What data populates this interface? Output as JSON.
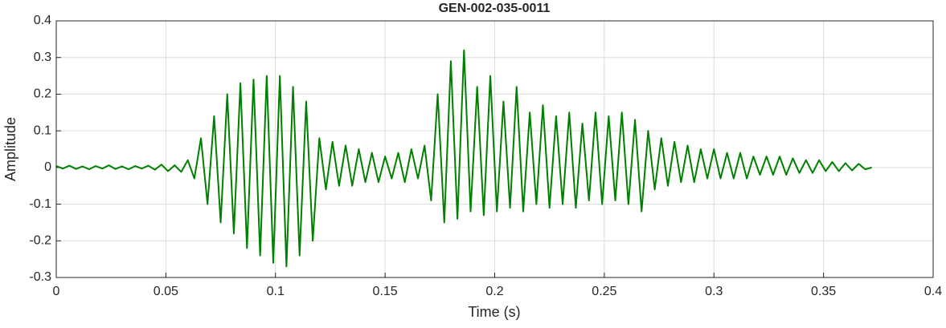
{
  "chart_data": {
    "type": "line",
    "title": "GEN-002-035-0011",
    "x_label": "Time (s)",
    "y_label": "Amplitude",
    "x": [
      0,
      0.003,
      0.006,
      0.009,
      0.012,
      0.015,
      0.018,
      0.021,
      0.024,
      0.027,
      0.03,
      0.033,
      0.036,
      0.039,
      0.042,
      0.045,
      0.048,
      0.051,
      0.054,
      0.057,
      0.06,
      0.063,
      0.066,
      0.069,
      0.072,
      0.075,
      0.078,
      0.081,
      0.084,
      0.087,
      0.09,
      0.093,
      0.096,
      0.099,
      0.102,
      0.105,
      0.108,
      0.111,
      0.114,
      0.117,
      0.12,
      0.123,
      0.126,
      0.129,
      0.132,
      0.135,
      0.138,
      0.141,
      0.144,
      0.147,
      0.15,
      0.153,
      0.156,
      0.159,
      0.162,
      0.165,
      0.168,
      0.171,
      0.174,
      0.177,
      0.18,
      0.183,
      0.186,
      0.189,
      0.192,
      0.195,
      0.198,
      0.201,
      0.204,
      0.207,
      0.21,
      0.213,
      0.216,
      0.219,
      0.222,
      0.225,
      0.228,
      0.231,
      0.234,
      0.237,
      0.24,
      0.243,
      0.246,
      0.249,
      0.252,
      0.255,
      0.258,
      0.261,
      0.264,
      0.267,
      0.27,
      0.273,
      0.276,
      0.279,
      0.282,
      0.285,
      0.288,
      0.291,
      0.294,
      0.297,
      0.3,
      0.303,
      0.306,
      0.309,
      0.312,
      0.315,
      0.318,
      0.321,
      0.324,
      0.327,
      0.33,
      0.333,
      0.336,
      0.339,
      0.342,
      0.345,
      0.348,
      0.351,
      0.354,
      0.357,
      0.36,
      0.363,
      0.366,
      0.369,
      0.372
    ],
    "values": [
      0.004,
      -0.003,
      0.005,
      -0.004,
      0.003,
      -0.005,
      0.004,
      -0.003,
      0.006,
      -0.004,
      0.003,
      -0.005,
      0.004,
      -0.003,
      0.005,
      -0.006,
      0.008,
      -0.01,
      0.006,
      -0.012,
      0.02,
      -0.03,
      0.08,
      -0.1,
      0.14,
      -0.15,
      0.2,
      -0.18,
      0.23,
      -0.22,
      0.24,
      -0.24,
      0.25,
      -0.26,
      0.25,
      -0.27,
      0.22,
      -0.24,
      0.18,
      -0.2,
      0.08,
      -0.06,
      0.07,
      -0.05,
      0.06,
      -0.05,
      0.05,
      -0.04,
      0.04,
      -0.04,
      0.03,
      -0.03,
      0.04,
      -0.04,
      0.05,
      -0.03,
      0.06,
      -0.09,
      0.2,
      -0.15,
      0.29,
      -0.14,
      0.32,
      -0.12,
      0.22,
      -0.13,
      0.25,
      -0.12,
      0.18,
      -0.11,
      0.22,
      -0.12,
      0.15,
      -0.1,
      0.17,
      -0.11,
      0.14,
      -0.1,
      0.15,
      -0.11,
      0.12,
      -0.09,
      0.15,
      -0.1,
      0.14,
      -0.09,
      0.15,
      -0.1,
      0.13,
      -0.12,
      0.1,
      -0.06,
      0.08,
      -0.05,
      0.07,
      -0.04,
      0.06,
      -0.04,
      0.05,
      -0.03,
      0.05,
      -0.03,
      0.04,
      -0.03,
      0.04,
      -0.03,
      0.03,
      -0.02,
      0.03,
      -0.02,
      0.03,
      -0.02,
      0.025,
      -0.015,
      0.02,
      -0.015,
      0.02,
      -0.01,
      0.015,
      -0.01,
      0.012,
      -0.008,
      0.01,
      -0.005,
      0
    ],
    "color": "#008000",
    "xlim": [
      0,
      0.4
    ],
    "xticks": [
      0,
      0.05,
      0.1,
      0.15,
      0.2,
      0.25,
      0.3,
      0.35,
      0.4
    ],
    "ylim": [
      -0.3,
      0.4
    ],
    "yticks": [
      -0.3,
      -0.2,
      -0.1,
      0,
      0.1,
      0.2,
      0.3,
      0.4
    ],
    "grid": true
  }
}
